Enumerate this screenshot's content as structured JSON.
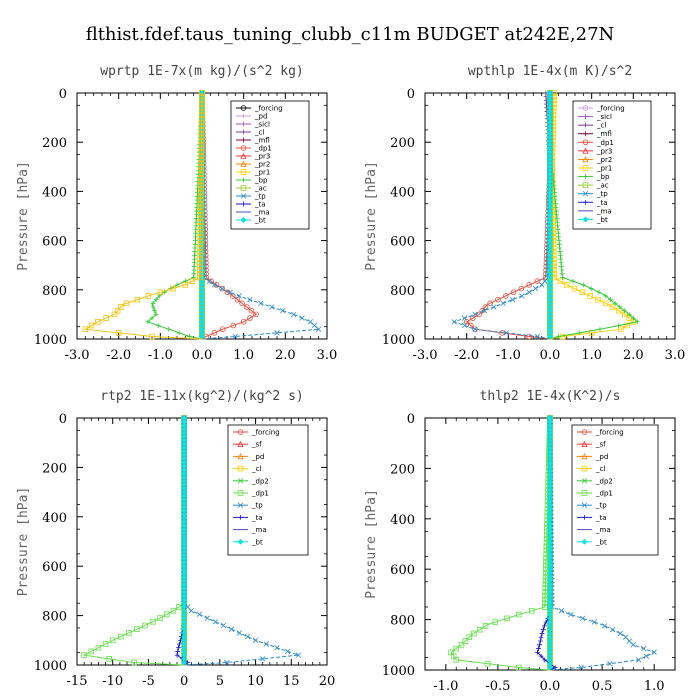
{
  "suptitle": "flthist.fdef.taus_tuning_clubb_c11m  BUDGET at242E,27N",
  "chart_data": [
    {
      "type": "line",
      "title": "wprtp  1E-7x(m kg)/(s^2 kg)",
      "ylabel": "Pressure [hPa]",
      "xlim": [
        -3.0,
        3.0
      ],
      "xticks": [
        -3.0,
        -2.0,
        -1.0,
        0.0,
        1.0,
        2.0,
        3.0
      ],
      "xtick_labels": [
        "-3.0",
        "-2.0",
        "-1.0",
        "0.0",
        "1.0",
        "2.0",
        "3.0"
      ],
      "ylim": [
        1000,
        0
      ],
      "yticks": [
        0,
        200,
        400,
        600,
        800,
        1000
      ],
      "legend_position": "upper-right",
      "levels": [
        0,
        750,
        780,
        820,
        860,
        900,
        930,
        960,
        990,
        1000
      ],
      "series": [
        {
          "name": "_forcing",
          "color": "#000000",
          "marker": "circle",
          "values": [
            0,
            0,
            0,
            0,
            0,
            0,
            0,
            0,
            0,
            0
          ]
        },
        {
          "name": "_pd",
          "color": "#c9a0dc",
          "marker": "plus",
          "values": [
            0,
            0,
            0,
            0,
            0,
            0,
            0,
            0,
            0,
            0
          ]
        },
        {
          "name": "_sicl",
          "color": "#9b59b6",
          "marker": "plus",
          "values": [
            0,
            0,
            0,
            0,
            0,
            0,
            0,
            0,
            0,
            0
          ]
        },
        {
          "name": "_cl",
          "color": "#7d3c98",
          "marker": "plus",
          "values": [
            0,
            0,
            0,
            0,
            0,
            0,
            0,
            0,
            0,
            0
          ]
        },
        {
          "name": "_mfl",
          "color": "#800040",
          "marker": "plus",
          "values": [
            0,
            0,
            0,
            0,
            0,
            0,
            0,
            0,
            0,
            0
          ]
        },
        {
          "name": "_dp1",
          "color": "#e74c3c",
          "marker": "circle",
          "values": [
            0,
            0.1,
            0.35,
            0.7,
            1.0,
            1.3,
            1.0,
            0.5,
            0.1,
            0
          ]
        },
        {
          "name": "_pr3",
          "color": "#ff3333",
          "marker": "triangle",
          "values": [
            0,
            0,
            0,
            0,
            0,
            0,
            0,
            0,
            0,
            0
          ]
        },
        {
          "name": "_pr2",
          "color": "#ff8000",
          "marker": "triangle",
          "values": [
            0,
            0,
            0,
            0,
            0,
            0,
            0,
            0,
            0,
            0
          ]
        },
        {
          "name": "_pr1",
          "color": "#ffcc00",
          "marker": "square",
          "values": [
            0,
            0,
            0,
            0,
            0,
            0,
            0,
            0,
            0,
            0
          ]
        },
        {
          "name": "_bp",
          "color": "#33cc33",
          "marker": "plus",
          "values": [
            0,
            -0.2,
            -0.6,
            -1.0,
            -1.2,
            -1.1,
            -1.3,
            -0.8,
            -0.3,
            0
          ]
        },
        {
          "name": "_ac",
          "color": "#99cc33",
          "marker": "square",
          "values": [
            0,
            0,
            0,
            0,
            0,
            0,
            0,
            0,
            0,
            0
          ]
        },
        {
          "name": "_tp",
          "color": "#2b8ccf",
          "marker": "cross",
          "values": [
            0,
            0.05,
            0.3,
            0.8,
            1.5,
            2.2,
            2.6,
            2.8,
            0.8,
            0
          ]
        },
        {
          "name": "_ta",
          "color": "#1a1acc",
          "marker": "plus",
          "values": [
            0,
            0,
            0,
            0,
            0,
            0,
            0,
            0,
            0,
            0
          ]
        },
        {
          "name": "_ma",
          "color": "#4d4dcc",
          "marker": "none",
          "values": [
            0,
            0,
            0,
            0,
            0,
            0,
            0,
            0,
            0,
            0
          ]
        },
        {
          "name": "_bt",
          "color": "#00e5e5",
          "marker": "diamond",
          "values": [
            0,
            0,
            0,
            0,
            0,
            0,
            0,
            0,
            0,
            0
          ]
        },
        {
          "name": "",
          "color": "#f4c20d",
          "marker": "square",
          "values": [
            0,
            -0.05,
            -0.4,
            -1.2,
            -1.9,
            -2.1,
            -2.5,
            -2.8,
            -1.2,
            0
          ]
        }
      ]
    },
    {
      "type": "line",
      "title": "wpthlp  1E-4x(m K)/s^2",
      "ylabel": "Pressure [hPa]",
      "xlim": [
        -3.0,
        3.0
      ],
      "xticks": [
        -3.0,
        -2.0,
        -1.0,
        0.0,
        1.0,
        2.0,
        3.0
      ],
      "xtick_labels": [
        "-3.0",
        "-2.0",
        "-1.0",
        "0.0",
        "1.0",
        "2.0",
        "3.0"
      ],
      "ylim": [
        1000,
        0
      ],
      "yticks": [
        0,
        200,
        400,
        600,
        800,
        1000
      ],
      "legend_position": "upper-right",
      "levels": [
        0,
        300,
        750,
        780,
        820,
        860,
        900,
        930,
        960,
        990,
        1000
      ],
      "series": [
        {
          "name": "_forcing",
          "color": "#c9a0dc",
          "marker": "circle",
          "values": [
            0,
            0,
            0,
            0,
            0,
            0,
            0,
            0,
            0,
            0,
            0
          ]
        },
        {
          "name": "_sicl",
          "color": "#9b59b6",
          "marker": "plus",
          "values": [
            0,
            0,
            0,
            0,
            0,
            0,
            0,
            0,
            0,
            0,
            0
          ]
        },
        {
          "name": "_cl",
          "color": "#7d3c98",
          "marker": "plus",
          "values": [
            -0.1,
            0,
            0,
            0,
            0,
            0,
            0,
            0,
            0,
            0,
            0
          ]
        },
        {
          "name": "_mfl",
          "color": "#800040",
          "marker": "plus",
          "values": [
            0,
            0,
            0,
            0,
            0,
            0,
            0,
            0,
            0,
            0,
            0
          ]
        },
        {
          "name": "_dp1",
          "color": "#e74c3c",
          "marker": "circle",
          "values": [
            0,
            0,
            -0.1,
            -0.5,
            -1.0,
            -1.5,
            -1.7,
            -2.0,
            -1.8,
            -0.5,
            0
          ]
        },
        {
          "name": "_pr3",
          "color": "#ff3333",
          "marker": "triangle",
          "values": [
            0,
            0,
            0,
            0,
            0,
            0,
            0,
            0,
            0,
            0,
            0
          ]
        },
        {
          "name": "_pr2",
          "color": "#ff8000",
          "marker": "triangle",
          "values": [
            0,
            0,
            0,
            0,
            0,
            0,
            0,
            0,
            0,
            0,
            0
          ]
        },
        {
          "name": "_pr1",
          "color": "#ffcc00",
          "marker": "square",
          "values": [
            0.1,
            0.05,
            0.1,
            0.4,
            0.9,
            1.4,
            1.8,
            2.0,
            1.7,
            0.3,
            0
          ]
        },
        {
          "name": "_bp",
          "color": "#33cc33",
          "marker": "plus",
          "values": [
            0,
            0.05,
            0.3,
            0.8,
            1.3,
            1.6,
            1.9,
            2.1,
            1.2,
            0.2,
            0
          ]
        },
        {
          "name": "_ac",
          "color": "#99cc33",
          "marker": "square",
          "values": [
            0,
            0,
            0,
            0,
            0,
            0,
            0,
            0,
            0,
            0,
            0
          ]
        },
        {
          "name": "_tp",
          "color": "#2b8ccf",
          "marker": "cross",
          "values": [
            0,
            0,
            -0.05,
            -0.2,
            -0.6,
            -1.2,
            -1.8,
            -2.3,
            -1.8,
            -0.3,
            0
          ]
        },
        {
          "name": "_ta",
          "color": "#1a1acc",
          "marker": "plus",
          "values": [
            0,
            0,
            0,
            0,
            0,
            0,
            0,
            0,
            0,
            0,
            0
          ]
        },
        {
          "name": "_ma",
          "color": "#4d4dcc",
          "marker": "none",
          "values": [
            0,
            0,
            0,
            0,
            0,
            0,
            0,
            0,
            0,
            0,
            0
          ]
        },
        {
          "name": "_bt",
          "color": "#00e5e5",
          "marker": "diamond",
          "values": [
            0,
            0,
            0,
            0,
            0,
            0,
            0,
            0,
            0,
            0,
            0
          ]
        }
      ]
    },
    {
      "type": "line",
      "title": "rtp2  1E-11x(kg^2)/(kg^2 s)",
      "ylabel": "Pressure [hPa]",
      "xlim": [
        -15,
        20
      ],
      "xticks": [
        -15,
        -10,
        -5,
        0,
        5,
        10,
        15,
        20
      ],
      "xtick_labels": [
        "-15",
        "-10",
        "-5",
        "0",
        "5",
        "10",
        "15",
        "20"
      ],
      "ylim": [
        1000,
        0
      ],
      "yticks": [
        0,
        200,
        400,
        600,
        800,
        1000
      ],
      "legend_position": "upper-right",
      "levels": [
        0,
        750,
        780,
        820,
        860,
        900,
        930,
        960,
        990,
        1000
      ],
      "series": [
        {
          "name": "_forcing",
          "color": "#e74c3c",
          "marker": "circle",
          "values": [
            0,
            0,
            0,
            0,
            0,
            0,
            0,
            0,
            0,
            0
          ]
        },
        {
          "name": "_sf",
          "color": "#ff3333",
          "marker": "triangle",
          "values": [
            0,
            0,
            0,
            0,
            0,
            0,
            0,
            0,
            0,
            0
          ]
        },
        {
          "name": "_pd",
          "color": "#ff8000",
          "marker": "triangle",
          "values": [
            0,
            0,
            0,
            0,
            0,
            0,
            0,
            0,
            0,
            0
          ]
        },
        {
          "name": "_cl",
          "color": "#ffcc00",
          "marker": "square",
          "values": [
            0,
            0,
            0,
            0,
            0,
            0,
            0,
            0,
            0,
            0
          ]
        },
        {
          "name": "_dp2",
          "color": "#33cc33",
          "marker": "cross",
          "values": [
            0,
            0,
            0,
            0,
            0,
            0,
            0,
            0,
            0,
            0
          ]
        },
        {
          "name": "_dp1",
          "color": "#66e04d",
          "marker": "square",
          "values": [
            0,
            0,
            -1.5,
            -4,
            -7,
            -10,
            -12,
            -14,
            -7,
            0
          ]
        },
        {
          "name": "_tp",
          "color": "#2b8ccf",
          "marker": "cross",
          "values": [
            0,
            0,
            1,
            4,
            7,
            10,
            13,
            16,
            6,
            0
          ]
        },
        {
          "name": "_ta",
          "color": "#1a1acc",
          "marker": "plus",
          "values": [
            0,
            0,
            0,
            0,
            -0.2,
            -0.5,
            -0.8,
            -1.0,
            0.5,
            0
          ]
        },
        {
          "name": "_ma",
          "color": "#4d4dcc",
          "marker": "none",
          "values": [
            0,
            0,
            0,
            0,
            0,
            0,
            0,
            0,
            0,
            0
          ]
        },
        {
          "name": "_bt",
          "color": "#00e5e5",
          "marker": "diamond",
          "values": [
            0,
            0,
            0,
            0,
            0,
            0,
            0,
            0,
            0,
            0
          ]
        }
      ]
    },
    {
      "type": "line",
      "title": "thlp2  1E-4x(K^2)/s",
      "ylabel": "Pressure [hPa]",
      "xlim": [
        -1.2,
        1.2
      ],
      "xticks": [
        -1.0,
        -0.5,
        0.0,
        0.5,
        1.0
      ],
      "xtick_labels": [
        "-1.0",
        "-0.5",
        "0.0",
        "0.5",
        "1.0"
      ],
      "ylim": [
        1000,
        0
      ],
      "yticks": [
        0,
        200,
        400,
        600,
        800,
        1000
      ],
      "legend_position": "upper-right",
      "levels": [
        0,
        750,
        780,
        820,
        860,
        900,
        930,
        960,
        990,
        1000
      ],
      "series": [
        {
          "name": "_forcing",
          "color": "#e74c3c",
          "marker": "circle",
          "values": [
            0,
            0,
            0,
            0,
            0,
            0,
            0,
            0,
            0,
            0
          ]
        },
        {
          "name": "_sf",
          "color": "#ff3333",
          "marker": "triangle",
          "values": [
            0,
            0,
            0,
            0,
            0,
            0,
            0,
            0,
            0,
            0
          ]
        },
        {
          "name": "_pd",
          "color": "#ff8000",
          "marker": "triangle",
          "values": [
            0,
            0,
            0,
            0,
            0,
            0,
            0,
            0,
            0,
            0
          ]
        },
        {
          "name": "_cl",
          "color": "#ffcc00",
          "marker": "square",
          "values": [
            0,
            0,
            0,
            0,
            0,
            0,
            0,
            0,
            0,
            0
          ]
        },
        {
          "name": "_dp2",
          "color": "#33cc33",
          "marker": "cross",
          "values": [
            0,
            0,
            0,
            0,
            0,
            0,
            0,
            0,
            0,
            0
          ]
        },
        {
          "name": "_dp1",
          "color": "#66e04d",
          "marker": "square",
          "values": [
            0,
            -0.05,
            -0.3,
            -0.6,
            -0.75,
            -0.85,
            -0.95,
            -0.9,
            -0.3,
            0
          ]
        },
        {
          "name": "_tp",
          "color": "#2b8ccf",
          "marker": "cross",
          "values": [
            0,
            0.02,
            0.2,
            0.5,
            0.7,
            0.8,
            1.0,
            0.85,
            0.3,
            0
          ]
        },
        {
          "name": "_ta",
          "color": "#1a1acc",
          "marker": "plus",
          "values": [
            0,
            0,
            0,
            -0.05,
            -0.08,
            -0.1,
            -0.12,
            -0.05,
            0.05,
            0
          ]
        },
        {
          "name": "_ma",
          "color": "#4d4dcc",
          "marker": "none",
          "values": [
            0,
            0,
            0,
            0,
            0,
            0,
            0,
            0,
            0,
            0
          ]
        },
        {
          "name": "_bt",
          "color": "#00e5e5",
          "marker": "diamond",
          "values": [
            0,
            0,
            0,
            0,
            0,
            0,
            0,
            0,
            0,
            0
          ]
        }
      ]
    }
  ]
}
